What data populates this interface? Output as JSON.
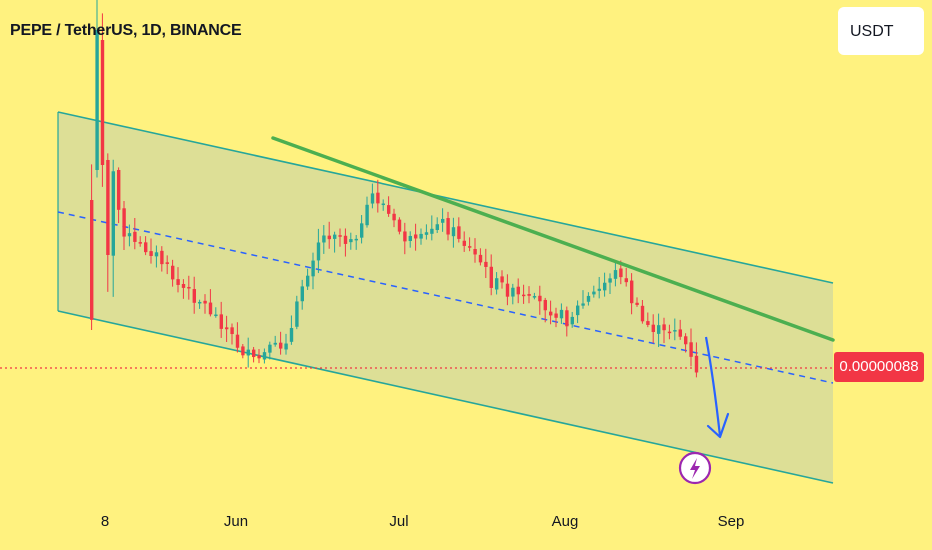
{
  "header": {
    "title": "PEPE / TetherUS, 1D, BINANCE"
  },
  "currency": {
    "label": "USDT"
  },
  "price": {
    "current": "0.00000088",
    "line_color": "#f23645"
  },
  "colors": {
    "background": "#fff27f",
    "up_candle": "#26a69a",
    "down_candle": "#f23645",
    "channel_line": "#26a69a",
    "channel_fill": "#d7dc9a",
    "midline": "#2962ff",
    "trendline": "#4caf50",
    "arrow": "#2962ff",
    "event_icon": "#9c27b0"
  },
  "icons": {
    "event": "lightning-icon",
    "projection": "down-arrow-icon"
  },
  "xaxis": {
    "labels": [
      "8",
      "Jun",
      "Jul",
      "Aug",
      "Sep"
    ]
  },
  "chart_data": {
    "type": "candlestick",
    "title": "PEPE / TetherUS, 1D, BINANCE",
    "x_ticks": [
      "8",
      "Jun",
      "Jul",
      "Aug",
      "Sep"
    ],
    "last_price": 8.8e-07,
    "ylabel": "",
    "grid": false
  }
}
